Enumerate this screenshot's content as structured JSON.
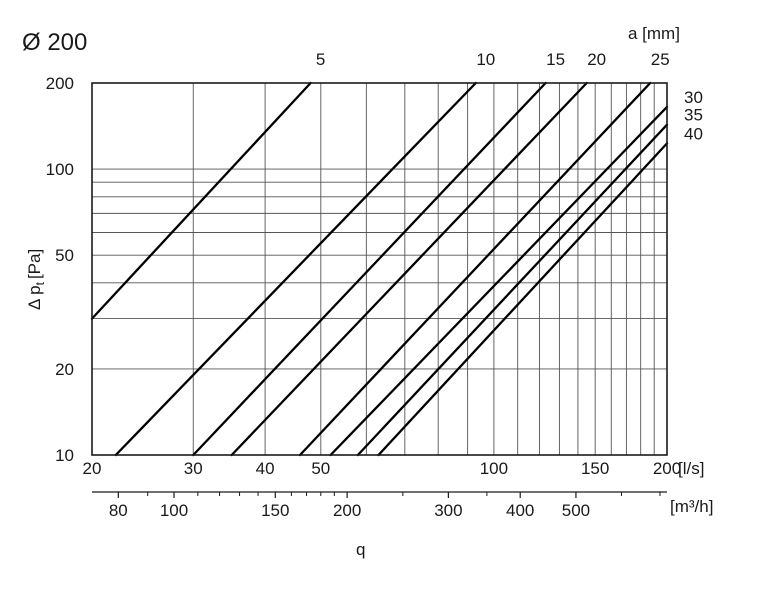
{
  "chart_data": {
    "type": "line",
    "title": "Ø 200",
    "ylabel_main": "Δ p",
    "ylabel_sub": "t",
    "ylabel_unit": "[Pa]",
    "xlabel": "q",
    "xunit": "[l/s]",
    "x2unit": "[m³/h]",
    "series_title": "a [mm]",
    "xscale": "log",
    "yscale": "log",
    "xlim": [
      20,
      200
    ],
    "ylim": [
      10,
      200
    ],
    "grid": true,
    "x_ticks": [
      20,
      30,
      40,
      50,
      100,
      150,
      200
    ],
    "x_tick_labels": [
      "20",
      "30",
      "40",
      "50",
      "100",
      "150",
      "200"
    ],
    "x_grid": [
      20,
      30,
      40,
      50,
      60,
      70,
      80,
      90,
      100,
      110,
      120,
      130,
      140,
      150,
      160,
      170,
      180,
      190,
      200
    ],
    "y_ticks": [
      10,
      20,
      50,
      100,
      200
    ],
    "y_tick_labels": [
      "10",
      "20",
      "50",
      "100",
      "200"
    ],
    "y_grid": [
      10,
      20,
      30,
      40,
      50,
      60,
      70,
      80,
      90,
      100,
      200
    ],
    "m3h_ticks": [
      80,
      100,
      150,
      200,
      300,
      400,
      500
    ],
    "m3h_tick_labels": [
      "80",
      "100",
      "150",
      "200",
      "300",
      "400",
      "500"
    ],
    "m3h_minor": [
      90,
      110,
      120,
      130,
      140,
      160,
      170,
      180,
      190,
      250,
      350,
      600,
      700
    ],
    "series": [
      {
        "name": "5",
        "label_pos": "top",
        "x": [
          20,
          48
        ],
        "y": [
          30,
          200
        ]
      },
      {
        "name": "10",
        "label_pos": "top",
        "x": [
          22,
          93
        ],
        "y": [
          10,
          200
        ]
      },
      {
        "name": "15",
        "label_pos": "top",
        "x": [
          30,
          123
        ],
        "y": [
          10,
          200
        ]
      },
      {
        "name": "20",
        "label_pos": "top",
        "x": [
          35,
          145
        ],
        "y": [
          10,
          200
        ]
      },
      {
        "name": "25",
        "label_pos": "top",
        "x": [
          46,
          187
        ],
        "y": [
          10,
          200
        ]
      },
      {
        "name": "30",
        "label_pos": "right",
        "x": [
          52,
          200
        ],
        "y": [
          10,
          165
        ]
      },
      {
        "name": "35",
        "label_pos": "right",
        "x": [
          58,
          200
        ],
        "y": [
          10,
          143
        ]
      },
      {
        "name": "40",
        "label_pos": "right",
        "x": [
          63,
          200
        ],
        "y": [
          10,
          123
        ]
      }
    ]
  }
}
